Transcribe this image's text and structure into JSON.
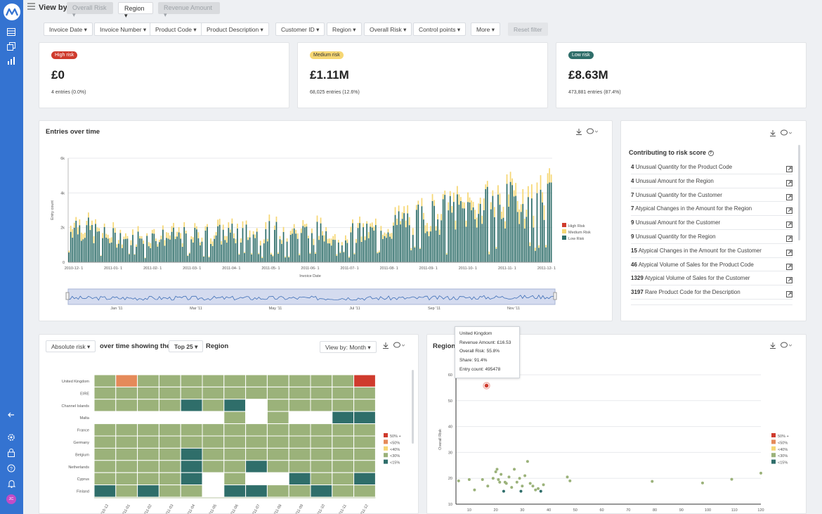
{
  "app": {
    "user_initials": "JC"
  },
  "topbar": {
    "view_by_label": "View by",
    "view_buttons": [
      {
        "label": "Overall Risk",
        "state": "disabled"
      },
      {
        "label": "Region",
        "state": "active"
      },
      {
        "label": "Revenue Amount",
        "state": "disabled"
      }
    ]
  },
  "filters": [
    "Invoice Date",
    "Invoice Number",
    "Product Code",
    "Product Description",
    "Customer ID",
    "Region",
    "Overall Risk",
    "Control points",
    "More"
  ],
  "reset_filter": "Reset filter",
  "kpis": [
    {
      "badge": "High risk",
      "badge_color": "#cf3b2d",
      "value": "£0",
      "sub": "4 entries (0.0%)"
    },
    {
      "badge": "Medium risk",
      "badge_color": "#f6d774",
      "value": "£1.11M",
      "sub": "68,025 entries (12.6%)"
    },
    {
      "badge": "Low risk",
      "badge_color": "#2f6e6a",
      "value": "£8.63M",
      "sub": "473,881 entries (87.4%)"
    }
  ],
  "entries_chart": {
    "title": "Entries over time",
    "chart_data": {
      "type": "bar",
      "xlabel": "Invoice Date",
      "ylabel": "Entry count",
      "y_ticks": [
        "0",
        "2k",
        "4k",
        "6k"
      ],
      "ylim": [
        0,
        6000
      ],
      "x_ticks": [
        "2010-12- 1",
        "2011-01- 1",
        "2011-02- 1",
        "2011-03- 1",
        "2011-04- 1",
        "2011-05- 1",
        "2011-06- 1",
        "2011-07- 1",
        "2011-08- 1",
        "2011-09- 1",
        "2011-10- 1",
        "2011-11- 1",
        "2011-12- 1"
      ],
      "navigator_ticks": [
        "Jan '11",
        "Mar '11",
        "May '11",
        "Jul '11",
        "Sep '11",
        "Nov '11"
      ],
      "legend": [
        {
          "name": "High Risk",
          "color": "#cf3b2d"
        },
        {
          "name": "Medium Risk",
          "color": "#f6d774"
        },
        {
          "name": "Low Risk",
          "color": "#2f6e6a"
        }
      ],
      "monthly_low_risk_approx": [
        2400,
        1500,
        1450,
        1500,
        1650,
        1750,
        1800,
        1750,
        1700,
        2400,
        2900,
        3200,
        3500
      ],
      "monthly_medium_risk_approx": [
        400,
        250,
        250,
        250,
        280,
        290,
        300,
        290,
        280,
        350,
        420,
        480,
        650
      ]
    }
  },
  "contrib": {
    "title": "Contributing to risk score",
    "items": [
      {
        "count": "4",
        "label": "Unusual Quantity for the Product Code"
      },
      {
        "count": "4",
        "label": "Unusual Amount for the Region"
      },
      {
        "count": "7",
        "label": "Unusual Quantity for the Customer"
      },
      {
        "count": "7",
        "label": "Atypical Changes in the Amount for the Region"
      },
      {
        "count": "9",
        "label": "Unusual Amount for the Customer"
      },
      {
        "count": "9",
        "label": "Unusual Quantity for the Region"
      },
      {
        "count": "15",
        "label": "Atypical Changes in the Amount for the Customer"
      },
      {
        "count": "46",
        "label": "Atypical Volume of Sales for the Product Code"
      },
      {
        "count": "1329",
        "label": "Atypical Volume of Sales for the Customer"
      },
      {
        "count": "3197",
        "label": "Rare Product Code for the Description"
      }
    ]
  },
  "heatmap": {
    "metric_dropdown": "Absolute risk",
    "text_middle": "over time showing the",
    "top_dropdown": "Top 25",
    "text_end": "Region",
    "view_by": "View by: Month",
    "chart_data": {
      "type": "heatmap",
      "rows": [
        "United Kingdom",
        "EIRE",
        "Channel Islands",
        "Malta",
        "France",
        "Germany",
        "Belgium",
        "Netherlands",
        "Cyprus",
        "Finland"
      ],
      "columns": [
        "2010-12",
        "2011-01",
        "2011-02",
        "2011-03",
        "2011-04",
        "2011-05",
        "2011-06",
        "2011-07",
        "2011-08",
        "2011-09",
        "2011-10",
        "2011-11",
        "2011-12"
      ],
      "cells": [
        [
          "<30%",
          "<50%",
          "<30%",
          "<30%",
          "<30%",
          "<30%",
          "<30%",
          "<30%",
          "<30%",
          "<30%",
          "<30%",
          "<30%",
          "50% +"
        ],
        [
          "<30%",
          "<30%",
          "<30%",
          "<30%",
          "<30%",
          "<30%",
          "<30%",
          "<30%",
          "<30%",
          "<30%",
          "<30%",
          "<30%",
          "<30%"
        ],
        [
          "<30%",
          "<30%",
          "<30%",
          "<30%",
          "<15%",
          "<30%",
          "<15%",
          "",
          "<30%",
          "<30%",
          "<30%",
          "<30%",
          "<30%"
        ],
        [
          "",
          "",
          "",
          "",
          "",
          "",
          "<30%",
          "",
          "<30%",
          "",
          "",
          "<15%",
          "<15%"
        ],
        [
          "<30%",
          "<30%",
          "<30%",
          "<30%",
          "<30%",
          "<30%",
          "<30%",
          "<30%",
          "<30%",
          "<30%",
          "<30%",
          "<30%",
          "<30%"
        ],
        [
          "<30%",
          "<30%",
          "<30%",
          "<30%",
          "<30%",
          "<30%",
          "<30%",
          "<30%",
          "<30%",
          "<30%",
          "<30%",
          "<30%",
          "<30%"
        ],
        [
          "<30%",
          "<30%",
          "<30%",
          "<30%",
          "<15%",
          "<30%",
          "<30%",
          "<30%",
          "<30%",
          "<30%",
          "<30%",
          "<30%",
          "<30%"
        ],
        [
          "<30%",
          "<30%",
          "<30%",
          "<30%",
          "<15%",
          "<30%",
          "<30%",
          "<15%",
          "<30%",
          "<30%",
          "<30%",
          "<30%",
          "<30%"
        ],
        [
          "<30%",
          "<30%",
          "<30%",
          "<30%",
          "<15%",
          "",
          "<30%",
          "",
          "",
          "<15%",
          "<30%",
          "<30%",
          "<15%"
        ],
        [
          "<15%",
          "<30%",
          "<15%",
          "<30%",
          "<30%",
          "",
          "<15%",
          "<15%",
          "<30%",
          "<30%",
          "<15%",
          "<30%",
          "<30%"
        ]
      ],
      "legend": [
        {
          "name": "50% +",
          "color": "#cf3b2d"
        },
        {
          "name": "<50%",
          "color": "#e58a5a"
        },
        {
          "name": "<40%",
          "color": "#f6d774"
        },
        {
          "name": "<30%",
          "color": "#9bb27a"
        },
        {
          "name": "<15%",
          "color": "#2f6e6a"
        }
      ]
    }
  },
  "scatter": {
    "title": "Region",
    "tooltip": [
      "United Kingdom",
      "Revenue Amount: £16.53",
      "Overall Risk: 55.8%",
      "Share: 91.4%",
      "Entry count: 495478"
    ],
    "chart_data": {
      "type": "scatter",
      "ylabel": "Overall Risk",
      "xlim": [
        5,
        120
      ],
      "ylim": [
        10,
        60
      ],
      "x_ticks": [
        10,
        20,
        30,
        40,
        50,
        60,
        70,
        80,
        90,
        100,
        110,
        120
      ],
      "y_ticks": [
        10,
        20,
        30,
        40,
        50,
        60
      ],
      "points": [
        {
          "x": 16.53,
          "y": 55.8,
          "color": "#cf3b2d"
        },
        {
          "x": 6,
          "y": 19,
          "color": "#9bb27a"
        },
        {
          "x": 10,
          "y": 19.5,
          "color": "#9bb27a"
        },
        {
          "x": 12,
          "y": 15.5,
          "color": "#9bb27a"
        },
        {
          "x": 15,
          "y": 19.5,
          "color": "#9bb27a"
        },
        {
          "x": 17,
          "y": 17,
          "color": "#9bb27a"
        },
        {
          "x": 19,
          "y": 20,
          "color": "#9bb27a"
        },
        {
          "x": 20,
          "y": 22.5,
          "color": "#9bb27a"
        },
        {
          "x": 20.5,
          "y": 23.5,
          "color": "#9bb27a"
        },
        {
          "x": 21,
          "y": 19.5,
          "color": "#9bb27a"
        },
        {
          "x": 21.5,
          "y": 18.5,
          "color": "#9bb27a"
        },
        {
          "x": 22,
          "y": 21.5,
          "color": "#9bb27a"
        },
        {
          "x": 23,
          "y": 15,
          "color": "#2f6e6a"
        },
        {
          "x": 23.5,
          "y": 18.5,
          "color": "#9bb27a"
        },
        {
          "x": 24,
          "y": 18,
          "color": "#9bb27a"
        },
        {
          "x": 25,
          "y": 20.5,
          "color": "#9bb27a"
        },
        {
          "x": 26,
          "y": 16.5,
          "color": "#9bb27a"
        },
        {
          "x": 27,
          "y": 23.5,
          "color": "#9bb27a"
        },
        {
          "x": 28,
          "y": 18.5,
          "color": "#9bb27a"
        },
        {
          "x": 29,
          "y": 20,
          "color": "#9bb27a"
        },
        {
          "x": 29.5,
          "y": 15,
          "color": "#2f6e6a"
        },
        {
          "x": 30,
          "y": 17,
          "color": "#9bb27a"
        },
        {
          "x": 31,
          "y": 21,
          "color": "#9bb27a"
        },
        {
          "x": 32,
          "y": 26.5,
          "color": "#9bb27a"
        },
        {
          "x": 33,
          "y": 18,
          "color": "#9bb27a"
        },
        {
          "x": 34,
          "y": 17,
          "color": "#9bb27a"
        },
        {
          "x": 35,
          "y": 15.5,
          "color": "#9bb27a"
        },
        {
          "x": 36,
          "y": 16,
          "color": "#9bb27a"
        },
        {
          "x": 37,
          "y": 15,
          "color": "#2f6e6a"
        },
        {
          "x": 38,
          "y": 17.5,
          "color": "#9bb27a"
        },
        {
          "x": 47,
          "y": 20.5,
          "color": "#9bb27a"
        },
        {
          "x": 48,
          "y": 19,
          "color": "#9bb27a"
        },
        {
          "x": 79,
          "y": 18.8,
          "color": "#9bb27a"
        },
        {
          "x": 98,
          "y": 18.2,
          "color": "#9bb27a"
        },
        {
          "x": 109,
          "y": 19.6,
          "color": "#9bb27a"
        },
        {
          "x": 120,
          "y": 22,
          "color": "#9bb27a"
        }
      ],
      "legend": [
        {
          "name": "50% +",
          "color": "#cf3b2d"
        },
        {
          "name": "<50%",
          "color": "#e58a5a"
        },
        {
          "name": "<40%",
          "color": "#f6d774"
        },
        {
          "name": "<30%",
          "color": "#9bb27a"
        },
        {
          "name": "<15%",
          "color": "#2f6e6a"
        }
      ]
    }
  }
}
